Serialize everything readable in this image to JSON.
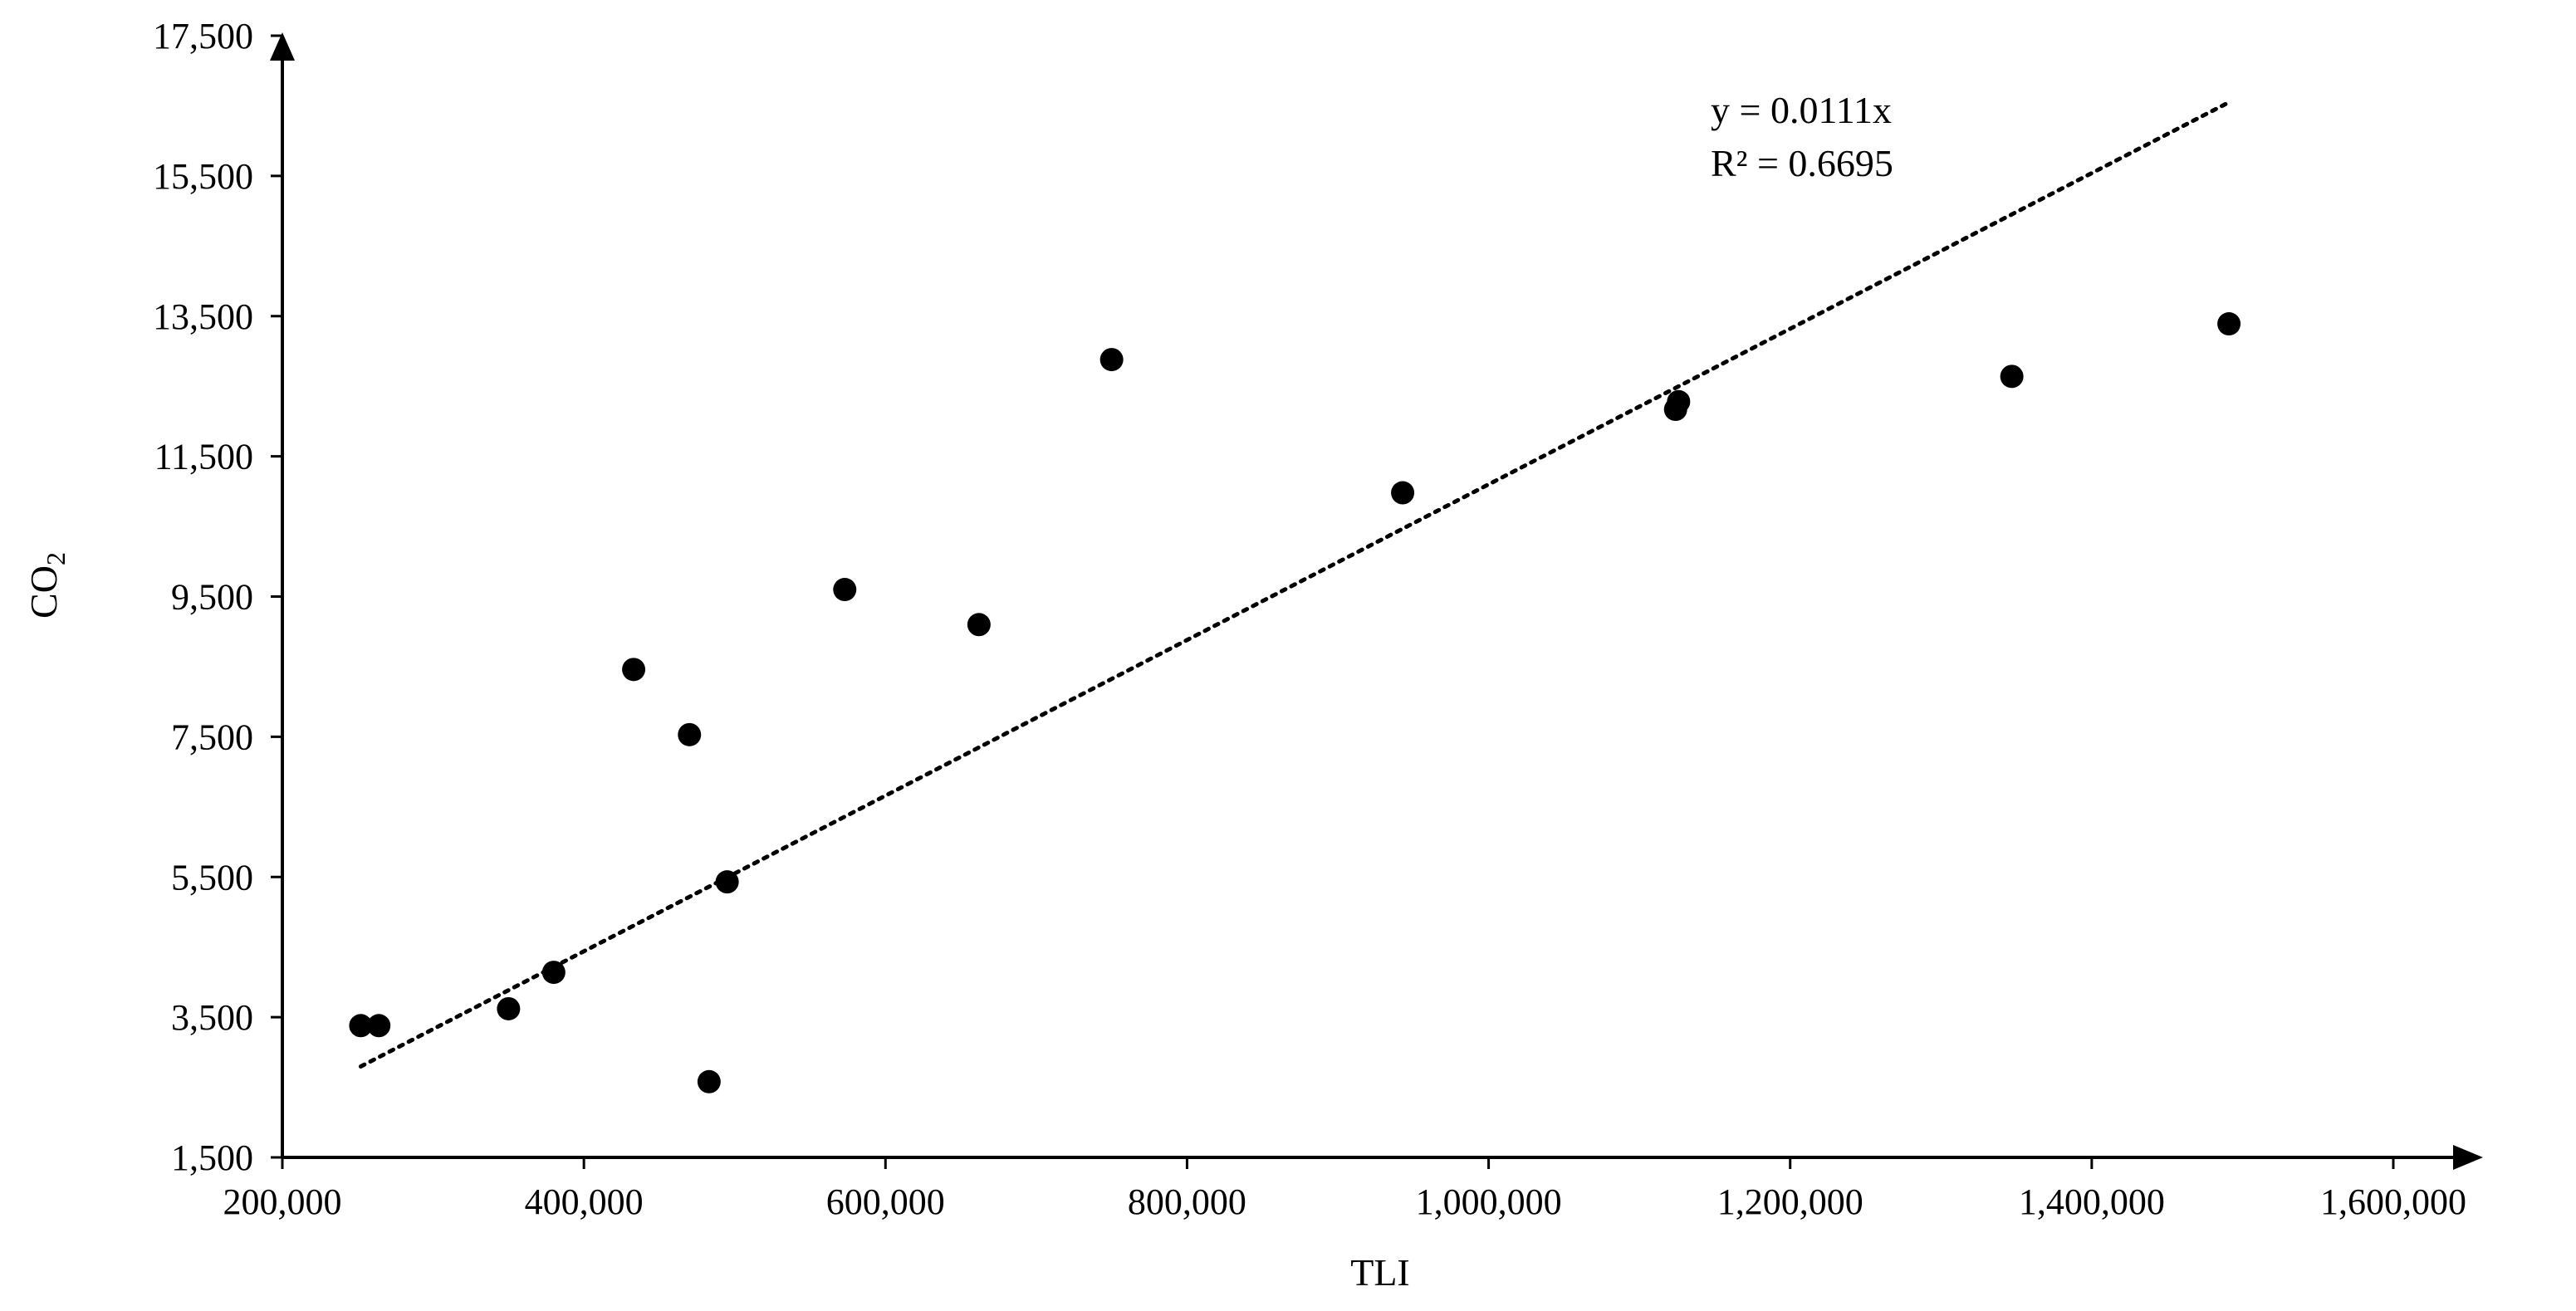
{
  "chart_data": {
    "type": "scatter",
    "title": "",
    "xlabel": "TLI",
    "ylabel_main": "CO",
    "ylabel_sub": "2",
    "xlim": [
      200000,
      1600000
    ],
    "ylim": [
      1500,
      17500
    ],
    "x_ticks": [
      200000,
      400000,
      600000,
      800000,
      1000000,
      1200000,
      1400000,
      1600000
    ],
    "x_tick_labels": [
      "200,000",
      "400,000",
      "600,000",
      "800,000",
      "1,000,000",
      "1,200,000",
      "1,400,000",
      "1,600,000"
    ],
    "y_ticks": [
      1500,
      3500,
      5500,
      7500,
      9500,
      11500,
      13500,
      15500,
      17500
    ],
    "y_tick_labels": [
      "1,500",
      "3,500",
      "5,500",
      "7,500",
      "9,500",
      "11,500",
      "13,500",
      "15,500",
      "17,500"
    ],
    "grid": false,
    "legend": "none",
    "points": [
      {
        "x": 252000,
        "y": 3380
      },
      {
        "x": 264000,
        "y": 3380
      },
      {
        "x": 350000,
        "y": 3620
      },
      {
        "x": 380000,
        "y": 4140
      },
      {
        "x": 433000,
        "y": 8460
      },
      {
        "x": 470000,
        "y": 7530
      },
      {
        "x": 483000,
        "y": 2580
      },
      {
        "x": 495000,
        "y": 5430
      },
      {
        "x": 573000,
        "y": 9600
      },
      {
        "x": 662000,
        "y": 9100
      },
      {
        "x": 750000,
        "y": 12880
      },
      {
        "x": 943000,
        "y": 10980
      },
      {
        "x": 1124000,
        "y": 12170
      },
      {
        "x": 1126000,
        "y": 12280
      },
      {
        "x": 1347000,
        "y": 12640
      },
      {
        "x": 1491000,
        "y": 13390
      }
    ],
    "trendline": {
      "style": "dotted",
      "slope": 0.0111,
      "x_start": 252000,
      "x_end": 1491000
    },
    "equation_text": "y = 0.0111x",
    "r2_text": "R² = 0.6695",
    "colors": {
      "marker": "#000000",
      "axis": "#000000",
      "trendline": "#000000"
    }
  }
}
